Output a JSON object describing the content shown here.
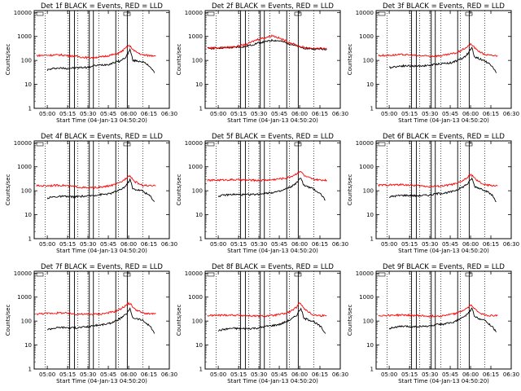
{
  "chart_data": [
    {
      "type": "line",
      "title": "Det 1f BLACK = Events, RED = LLD",
      "xlabel": "Start Time (04-Jan-13 04:50:20)",
      "ylabel": "Counts/sec",
      "x_ticks": [
        "05:00",
        "05:15",
        "05:30",
        "05:45",
        "06:00",
        "06:15",
        "06:30"
      ],
      "y_ticks": [
        "1",
        "10",
        "100",
        "1000",
        "10000"
      ],
      "xlim": [
        "04:50:20",
        "06:30:00"
      ],
      "ylim": [
        1,
        12000
      ],
      "y_scale": "log",
      "series": [
        {
          "color": "#000000",
          "x_min": [
            0,
            4,
            6,
            15,
            30,
            34.5,
            40,
            46,
            50,
            54,
            58,
            61,
            62,
            63,
            70,
            76,
            79
          ],
          "values": [
            40,
            45,
            48,
            47,
            52,
            60,
            65,
            70,
            85,
            95,
            140,
            280,
            180,
            100,
            90,
            55,
            30
          ]
        },
        {
          "color": "#ff0000",
          "x_min": [
            -8,
            0,
            10,
            20,
            30,
            40,
            50,
            54,
            58,
            60,
            62,
            64,
            70,
            75,
            80
          ],
          "values": [
            160,
            165,
            170,
            150,
            130,
            140,
            180,
            220,
            330,
            420,
            350,
            250,
            170,
            160,
            160
          ]
        }
      ],
      "dotted_lines_min": [
        -1.5,
        15.5,
        22.5,
        30,
        38,
        52.5,
        59,
        70.5
      ],
      "solid_lines_min": [
        16.5,
        20,
        31,
        34,
        50.5,
        59
      ]
    },
    {
      "type": "line",
      "title": "Det 2f BLACK = Events, RED = LLD",
      "xlabel": "Start Time (04-Jan-13 04:50:20)",
      "ylabel": "Counts/sec",
      "x_ticks": [
        "05:00",
        "05:15",
        "05:30",
        "05:45",
        "06:00",
        "06:15",
        "06:30"
      ],
      "y_ticks": [
        "1",
        "10",
        "100",
        "1000",
        "10000"
      ],
      "xlim": [
        "04:50:20",
        "06:30:00"
      ],
      "ylim": [
        1,
        12000
      ],
      "y_scale": "log",
      "series": [
        {
          "color": "#000000",
          "x_min": [
            -8,
            0,
            10,
            20,
            25,
            30,
            35,
            40,
            45,
            50,
            55,
            60,
            65,
            70,
            80
          ],
          "values": [
            320,
            330,
            340,
            380,
            450,
            550,
            600,
            700,
            650,
            550,
            450,
            350,
            320,
            300,
            300
          ]
        },
        {
          "color": "#ff0000",
          "x_min": [
            -8,
            0,
            10,
            20,
            25,
            30,
            35,
            40,
            45,
            50,
            55,
            60,
            65,
            70,
            80
          ],
          "values": [
            330,
            340,
            360,
            450,
            600,
            800,
            900,
            1100,
            850,
            650,
            500,
            380,
            340,
            320,
            310
          ]
        }
      ],
      "dotted_lines_min": [
        -1.5,
        15.5,
        22.5,
        30,
        38,
        52.5,
        59,
        70.5
      ],
      "solid_lines_min": [
        16.5,
        20,
        31,
        34,
        50.5,
        59
      ]
    },
    {
      "type": "line",
      "title": "Det 3f BLACK = Events, RED = LLD",
      "xlabel": "Start Time (04-Jan-13 04:50:20)",
      "ylabel": "Counts/sec",
      "x_ticks": [
        "05:00",
        "05:15",
        "05:30",
        "05:45",
        "06:00",
        "06:15",
        "06:30"
      ],
      "y_ticks": [
        "1",
        "10",
        "100",
        "1000",
        "10000"
      ],
      "xlim": [
        "04:50:20",
        "06:30:00"
      ],
      "ylim": [
        1,
        12000
      ],
      "y_scale": "log",
      "series": [
        {
          "color": "#000000",
          "x_min": [
            0,
            4,
            10,
            20,
            30,
            34.5,
            40,
            46,
            50,
            54,
            58,
            61,
            62,
            63,
            70,
            76,
            79
          ],
          "values": [
            50,
            55,
            60,
            58,
            62,
            70,
            75,
            80,
            100,
            120,
            190,
            350,
            220,
            140,
            100,
            60,
            30
          ]
        },
        {
          "color": "#ff0000",
          "x_min": [
            -8,
            0,
            10,
            20,
            30,
            40,
            50,
            54,
            58,
            60,
            62,
            64,
            70,
            75,
            80
          ],
          "values": [
            160,
            165,
            175,
            160,
            150,
            160,
            210,
            280,
            380,
            470,
            400,
            290,
            180,
            160,
            160
          ]
        }
      ],
      "dotted_lines_min": [
        -1.5,
        15.5,
        22.5,
        30,
        38,
        52.5,
        59,
        70.5
      ],
      "solid_lines_min": [
        16.5,
        20,
        31,
        34,
        50.5,
        59
      ]
    },
    {
      "type": "line",
      "title": "Det 4f BLACK = Events, RED = LLD",
      "xlabel": "Start Time (04-Jan-13 04:50:20)",
      "ylabel": "Counts/sec",
      "x_ticks": [
        "05:00",
        "05:15",
        "05:30",
        "05:45",
        "06:00",
        "06:15",
        "06:30"
      ],
      "y_ticks": [
        "1",
        "10",
        "100",
        "1000",
        "10000"
      ],
      "xlim": [
        "04:50:20",
        "06:30:00"
      ],
      "ylim": [
        1,
        12000
      ],
      "y_scale": "log",
      "series": [
        {
          "color": "#000000",
          "x_min": [
            0,
            4,
            10,
            20,
            30,
            34.5,
            40,
            46,
            50,
            54,
            58,
            61,
            62,
            63,
            70,
            76,
            79
          ],
          "values": [
            50,
            55,
            58,
            56,
            60,
            65,
            70,
            75,
            90,
            110,
            160,
            300,
            200,
            120,
            100,
            60,
            35
          ]
        },
        {
          "color": "#ff0000",
          "x_min": [
            -8,
            0,
            10,
            20,
            30,
            40,
            50,
            54,
            58,
            60,
            62,
            64,
            70,
            75,
            80
          ],
          "values": [
            160,
            165,
            170,
            150,
            130,
            140,
            180,
            220,
            330,
            450,
            370,
            250,
            170,
            160,
            160
          ]
        }
      ],
      "dotted_lines_min": [
        -1.5,
        15.5,
        22.5,
        30,
        38,
        52.5,
        59,
        70.5
      ],
      "solid_lines_min": [
        16.5,
        20,
        31,
        34,
        50.5,
        59
      ]
    },
    {
      "type": "line",
      "title": "Det 5f BLACK = Events, RED = LLD",
      "xlabel": "Start Time (04-Jan-13 04:50:20)",
      "ylabel": "Counts/sec",
      "x_ticks": [
        "05:00",
        "05:15",
        "05:30",
        "05:45",
        "06:00",
        "06:15",
        "06:30"
      ],
      "y_ticks": [
        "1",
        "10",
        "100",
        "1000",
        "10000"
      ],
      "xlim": [
        "04:50:20",
        "06:30:00"
      ],
      "ylim": [
        1,
        12000
      ],
      "y_scale": "log",
      "series": [
        {
          "color": "#000000",
          "x_min": [
            0,
            4,
            10,
            20,
            30,
            34.5,
            40,
            46,
            50,
            54,
            58,
            61,
            62,
            63,
            70,
            76,
            79
          ],
          "values": [
            60,
            65,
            70,
            68,
            72,
            80,
            85,
            95,
            120,
            150,
            220,
            350,
            250,
            170,
            120,
            70,
            40
          ]
        },
        {
          "color": "#ff0000",
          "x_min": [
            -8,
            0,
            10,
            20,
            30,
            40,
            50,
            54,
            58,
            60,
            62,
            64,
            70,
            75,
            80
          ],
          "values": [
            270,
            280,
            290,
            280,
            270,
            290,
            340,
            400,
            520,
            650,
            550,
            400,
            300,
            280,
            280
          ]
        }
      ],
      "dotted_lines_min": [
        -1.5,
        15.5,
        22.5,
        30,
        38,
        52.5,
        59,
        70.5
      ],
      "solid_lines_min": [
        16.5,
        20,
        31,
        34,
        50.5,
        59
      ]
    },
    {
      "type": "line",
      "title": "Det 6f BLACK = Events, RED = LLD",
      "xlabel": "Start Time (04-Jan-13 04:50:20)",
      "ylabel": "Counts/sec",
      "x_ticks": [
        "05:00",
        "05:15",
        "05:30",
        "05:45",
        "06:00",
        "06:15",
        "06:30"
      ],
      "y_ticks": [
        "1",
        "10",
        "100",
        "1000",
        "10000"
      ],
      "xlim": [
        "04:50:20",
        "06:30:00"
      ],
      "ylim": [
        1,
        12000
      ],
      "y_scale": "log",
      "series": [
        {
          "color": "#000000",
          "x_min": [
            0,
            4,
            10,
            20,
            30,
            34.5,
            40,
            46,
            50,
            54,
            58,
            61,
            62,
            63,
            70,
            76,
            79
          ],
          "values": [
            55,
            60,
            65,
            62,
            66,
            75,
            80,
            90,
            110,
            140,
            200,
            330,
            230,
            150,
            110,
            65,
            35
          ]
        },
        {
          "color": "#ff0000",
          "x_min": [
            -8,
            0,
            10,
            20,
            30,
            40,
            50,
            54,
            58,
            60,
            62,
            64,
            70,
            75,
            80
          ],
          "values": [
            170,
            175,
            180,
            165,
            150,
            160,
            200,
            260,
            360,
            480,
            400,
            280,
            180,
            165,
            165
          ]
        }
      ],
      "dotted_lines_min": [
        -1.5,
        15.5,
        22.5,
        30,
        38,
        52.5,
        59,
        70.5
      ],
      "solid_lines_min": [
        16.5,
        20,
        31,
        34,
        50.5,
        59
      ]
    },
    {
      "type": "line",
      "title": "Det 7f BLACK = Events, RED = LLD",
      "xlabel": "Start Time (04-Jan-13 04:50:20)",
      "ylabel": "Counts/sec",
      "x_ticks": [
        "05:00",
        "05:15",
        "05:30",
        "05:45",
        "06:00",
        "06:15",
        "06:30"
      ],
      "y_ticks": [
        "1",
        "10",
        "100",
        "1000",
        "10000"
      ],
      "xlim": [
        "04:50:20",
        "06:30:00"
      ],
      "ylim": [
        1,
        12000
      ],
      "y_scale": "log",
      "series": [
        {
          "color": "#000000",
          "x_min": [
            0,
            4,
            10,
            20,
            30,
            34.5,
            40,
            46,
            50,
            54,
            58,
            61,
            62,
            63,
            70,
            76,
            79
          ],
          "values": [
            45,
            50,
            55,
            52,
            58,
            65,
            70,
            80,
            100,
            130,
            190,
            320,
            220,
            140,
            110,
            60,
            30
          ]
        },
        {
          "color": "#ff0000",
          "x_min": [
            -8,
            0,
            10,
            20,
            30,
            40,
            50,
            54,
            58,
            60,
            62,
            64,
            70,
            75,
            80
          ],
          "values": [
            200,
            210,
            220,
            200,
            190,
            200,
            250,
            320,
            450,
            560,
            480,
            330,
            220,
            200,
            200
          ]
        }
      ],
      "dotted_lines_min": [
        -1.5,
        15.5,
        22.5,
        30,
        38,
        52.5,
        59,
        70.5
      ],
      "solid_lines_min": [
        16.5,
        20,
        31,
        34,
        50.5,
        59
      ]
    },
    {
      "type": "line",
      "title": "Det 8f BLACK = Events, RED = LLD",
      "xlabel": "Start Time (04-Jan-13 04:50:20)",
      "ylabel": "Counts/sec",
      "x_ticks": [
        "05:00",
        "05:15",
        "05:30",
        "05:45",
        "06:00",
        "06:15",
        "06:30"
      ],
      "y_ticks": [
        "1",
        "10",
        "100",
        "1000",
        "10000"
      ],
      "xlim": [
        "04:50:20",
        "06:30:00"
      ],
      "ylim": [
        1,
        12000
      ],
      "y_scale": "log",
      "series": [
        {
          "color": "#000000",
          "x_min": [
            0,
            4,
            10,
            20,
            30,
            34.5,
            40,
            46,
            50,
            54,
            58,
            61,
            62,
            63,
            70,
            76,
            79
          ],
          "values": [
            40,
            45,
            50,
            48,
            52,
            60,
            65,
            75,
            95,
            120,
            180,
            350,
            220,
            130,
            100,
            55,
            30
          ]
        },
        {
          "color": "#ff0000",
          "x_min": [
            -8,
            0,
            10,
            20,
            30,
            40,
            50,
            54,
            58,
            60,
            62,
            64,
            70,
            75,
            80
          ],
          "values": [
            170,
            175,
            180,
            170,
            160,
            170,
            210,
            270,
            380,
            600,
            450,
            300,
            180,
            170,
            170
          ]
        }
      ],
      "dotted_lines_min": [
        -1.5,
        15.5,
        22.5,
        30,
        38,
        52.5,
        59,
        70.5
      ],
      "solid_lines_min": [
        16.5,
        20,
        31,
        34,
        50.5,
        59
      ]
    },
    {
      "type": "line",
      "title": "Det 9f BLACK = Events, RED = LLD",
      "xlabel": "Start Time (04-Jan-13 04:50:20)",
      "ylabel": "Counts/sec",
      "x_ticks": [
        "05:00",
        "05:15",
        "05:30",
        "05:45",
        "06:00",
        "06:15",
        "06:30"
      ],
      "y_ticks": [
        "1",
        "10",
        "100",
        "1000",
        "10000"
      ],
      "xlim": [
        "04:50:20",
        "06:30:00"
      ],
      "ylim": [
        1,
        12000
      ],
      "y_scale": "log",
      "series": [
        {
          "color": "#000000",
          "x_min": [
            0,
            4,
            10,
            20,
            30,
            34.5,
            40,
            46,
            50,
            54,
            58,
            61,
            62,
            63,
            70,
            76,
            79
          ],
          "values": [
            50,
            55,
            60,
            58,
            62,
            70,
            75,
            85,
            105,
            135,
            200,
            340,
            230,
            150,
            110,
            60,
            35
          ]
        },
        {
          "color": "#ff0000",
          "x_min": [
            -8,
            0,
            10,
            20,
            30,
            40,
            50,
            54,
            58,
            60,
            62,
            64,
            70,
            75,
            80
          ],
          "values": [
            170,
            175,
            180,
            170,
            160,
            170,
            210,
            270,
            360,
            460,
            400,
            280,
            180,
            170,
            170
          ]
        }
      ],
      "dotted_lines_min": [
        -1.5,
        15.5,
        22.5,
        30,
        38,
        52.5,
        59,
        70.5
      ],
      "solid_lines_min": [
        16.5,
        20,
        31,
        34,
        50.5,
        59
      ]
    }
  ]
}
